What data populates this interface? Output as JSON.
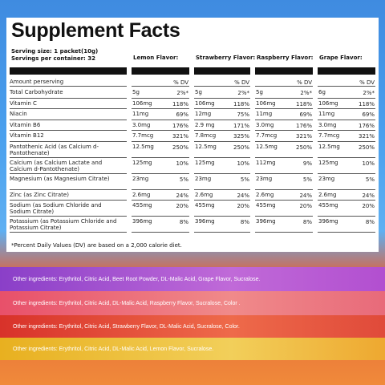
{
  "title": "Supplement Facts",
  "serving_size": "Serving size: 1 packet(10g)",
  "servings": "Servings per container: 32",
  "flavors": [
    "Lemon Flavor:",
    "Strawberry Flavor:",
    "Raspberry Flavor:",
    "Grape Flavor:"
  ],
  "amount_label": "Amount perserving",
  "dv_label": "% DV",
  "rows": [
    {
      "name": "Total Carbohydrate",
      "cells": [
        [
          "5g",
          "2%*"
        ],
        [
          "5g",
          "2%*"
        ],
        [
          "5g",
          "2%*"
        ],
        [
          "6g",
          "2%*"
        ]
      ]
    },
    {
      "name": "Vitamin  C",
      "cells": [
        [
          "106mg",
          "118%"
        ],
        [
          "106mg",
          "118%"
        ],
        [
          "106mg",
          "118%"
        ],
        [
          "106mg",
          "118%"
        ]
      ]
    },
    {
      "name": "Niacin",
      "cells": [
        [
          "11mg",
          "69%"
        ],
        [
          "12mg",
          "75%"
        ],
        [
          "11mg",
          "69%"
        ],
        [
          "11mg",
          "69%"
        ]
      ]
    },
    {
      "name": "Vitamin B6",
      "cells": [
        [
          "3.0mg",
          "176%"
        ],
        [
          "2.9 mg",
          "171%"
        ],
        [
          "3.0mg",
          "176%"
        ],
        [
          "3.0mg",
          "176%"
        ]
      ]
    },
    {
      "name": "Vitamin B12",
      "cells": [
        [
          "7.7mcg",
          "321%"
        ],
        [
          "7.8mcg",
          "325%"
        ],
        [
          "7.7mcg",
          "321%"
        ],
        [
          "7.7mcg",
          "321%"
        ]
      ]
    },
    {
      "name": "Pantothenic Acid (as Calcium d-Pantothenate)",
      "cells": [
        [
          "12.5mg",
          "250%"
        ],
        [
          "12.5mg",
          "250%"
        ],
        [
          "12.5mg",
          "250%"
        ],
        [
          "12.5mg",
          "250%"
        ]
      ]
    },
    {
      "name": "Calcium (as Calcium Lactate and Calcium d-Pantothenate)",
      "cells": [
        [
          "125mg",
          "10%"
        ],
        [
          "125mg",
          "10%"
        ],
        [
          "112mg",
          "9%"
        ],
        [
          "125mg",
          "10%"
        ]
      ]
    },
    {
      "name": "Magnesium (as Magnesium Citrate)",
      "cells": [
        [
          "23mg",
          "5%"
        ],
        [
          "23mg",
          "5%"
        ],
        [
          "23mg",
          "5%"
        ],
        [
          "23mg",
          "5%"
        ]
      ]
    },
    {
      "name": "Zinc (as Zinc Citrate)",
      "cells": [
        [
          "2.6mg",
          "24%"
        ],
        [
          "2.6mg",
          "24%"
        ],
        [
          "2.6mg",
          "24%"
        ],
        [
          "2.6mg",
          "24%"
        ]
      ]
    },
    {
      "name": "Sodium (as Sodium Chloride and Sodium Citrate)",
      "cells": [
        [
          "455mg",
          "20%"
        ],
        [
          "455mg",
          "20%"
        ],
        [
          "455mg",
          "20%"
        ],
        [
          "455mg",
          "20%"
        ]
      ]
    },
    {
      "name": "Potassium (as Potassium Chloride and Potassium Citrate)",
      "cells": [
        [
          "396mg",
          "8%"
        ],
        [
          "396mg",
          "8%"
        ],
        [
          "396mg",
          "8%"
        ],
        [
          "396mg",
          "8%"
        ]
      ]
    }
  ],
  "footnote": "*Percent Daily Values (DV) are based on a 2,000 calorie diet.",
  "ingredients": [
    "Other ingredients: Erythritol, Citric Acid, Beet Root Powder, DL-Malic Acid, Grape Flavor, Sucralose.",
    "Other ingredients: Erythritol, Citric Acid, DL-Malic Acid, Raspberry Flavor, Sucralose, Color .",
    "Other ingredients: Erythritol, Citric Acid, Strawberry Flavor, DL-Malic Acid, Sucralose, Color.",
    "Other ingredients: Erythritol, Citric Acid, DL-Malic Acid, Lemon Flavor, Sucralose."
  ]
}
